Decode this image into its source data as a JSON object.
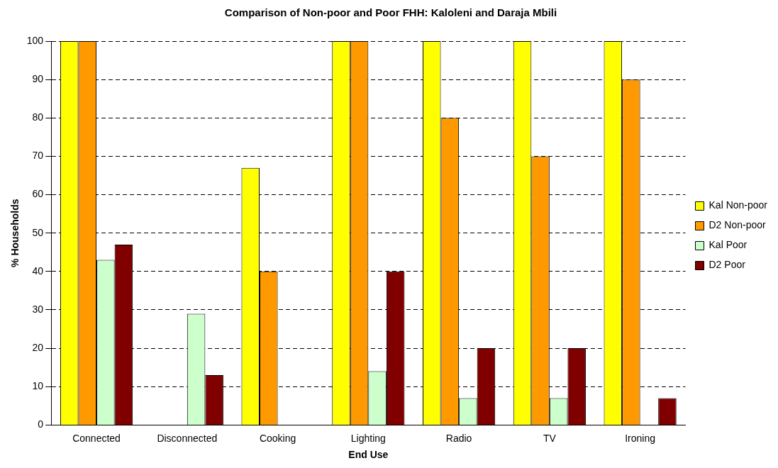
{
  "chart_data": {
    "type": "bar",
    "title": "Comparison of Non-poor and Poor FHH: Kaloleni and Daraja Mbili",
    "xlabel": "End Use",
    "ylabel": "% Households",
    "categories": [
      "Connected",
      "Disconnected",
      "Cooking",
      "Lighting",
      "Radio",
      "TV",
      "Ironing"
    ],
    "series": [
      {
        "name": "Kal Non-poor",
        "color": "#ffff00",
        "values": [
          100,
          null,
          67,
          100,
          100,
          100,
          100
        ]
      },
      {
        "name": "D2 Non-poor",
        "color": "#ff9900",
        "values": [
          100,
          null,
          40,
          100,
          80,
          70,
          90
        ]
      },
      {
        "name": "Kal Poor",
        "color": "#ccffcc",
        "values": [
          43,
          29,
          null,
          14,
          7,
          7,
          null
        ]
      },
      {
        "name": "D2 Poor",
        "color": "#800000",
        "values": [
          47,
          13,
          null,
          40,
          20,
          20,
          7
        ]
      }
    ],
    "ylim": [
      0,
      100
    ],
    "yticks": [
      0,
      10,
      20,
      30,
      40,
      50,
      60,
      70,
      80,
      90,
      100
    ],
    "grid": "y",
    "legend": "right"
  }
}
